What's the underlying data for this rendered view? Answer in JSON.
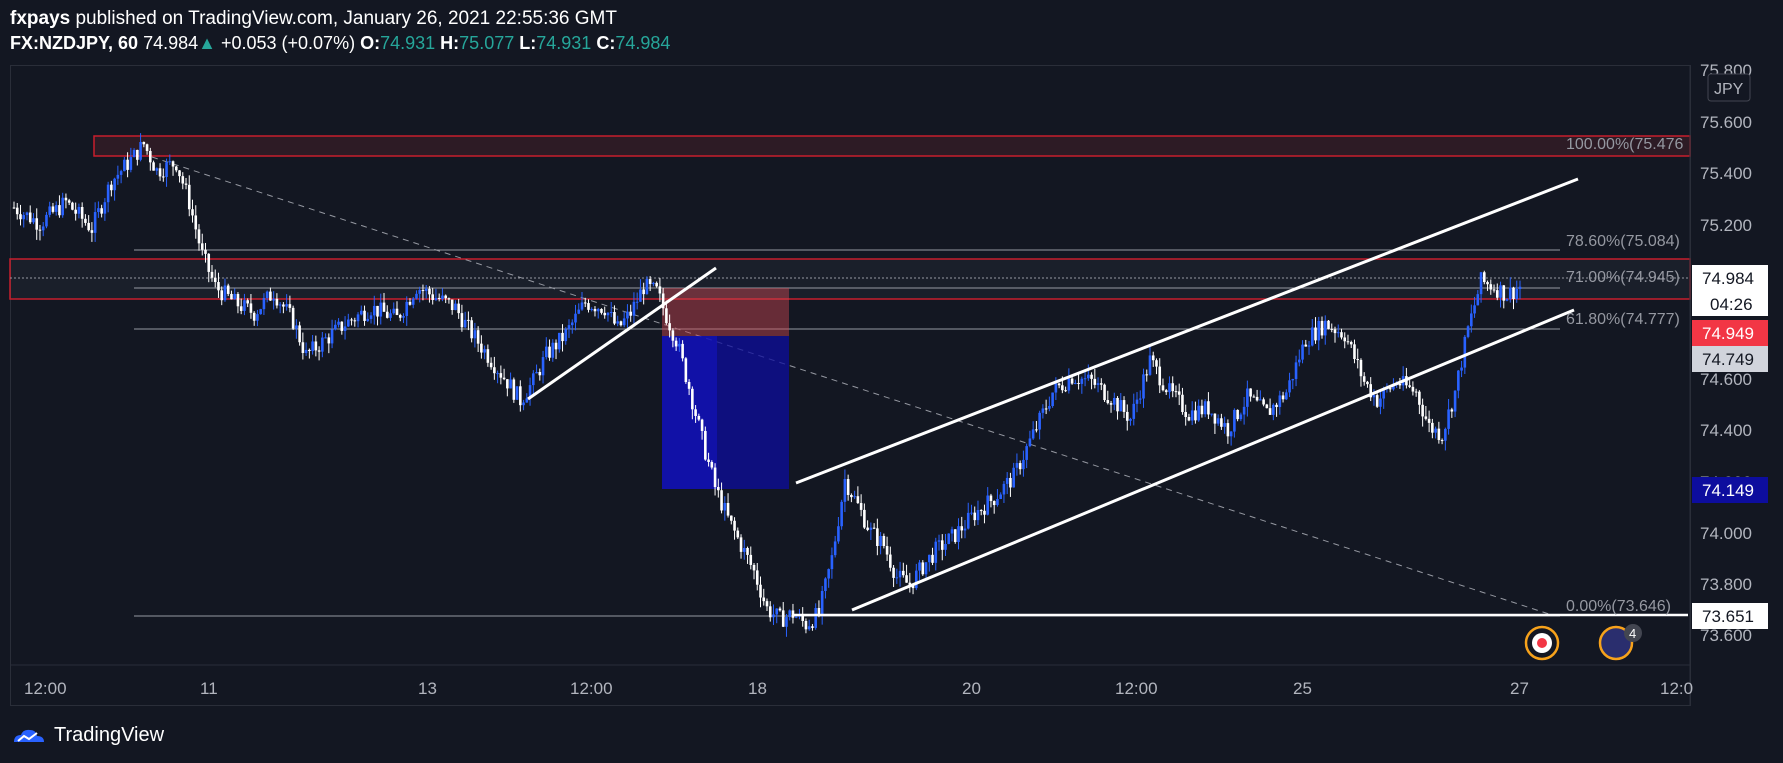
{
  "header": {
    "author": "fxpays",
    "published_text": "published on TradingView.com, January 26, 2021 22:55:36 GMT",
    "symbol": "FX:NZDJPY, 60",
    "last": "74.984",
    "change": "+0.053 (+0.07%)",
    "open_label": "O:",
    "open": "74.931",
    "high_label": "H:",
    "high": "75.077",
    "low_label": "L:",
    "low": "74.931",
    "close_label": "C:",
    "close": "74.984"
  },
  "price_axis": {
    "currency": "JPY",
    "ticks": [
      "75.800",
      "75.600",
      "75.400",
      "75.200",
      "74.600",
      "74.400",
      "74.200",
      "74.000",
      "73.800",
      "73.600"
    ]
  },
  "time_axis": {
    "ticks": [
      "12:00",
      "11",
      "13",
      "12:00",
      "18",
      "20",
      "12:00",
      "25",
      "27",
      "12:0"
    ]
  },
  "price_labels": {
    "last_price": "74.984",
    "countdown": "04:26",
    "red_label": "74.949",
    "gray_label": "74.749",
    "blue_label": "74.149",
    "bottom_label": "73.651"
  },
  "fib_levels": [
    {
      "label": "100.00%(75.476",
      "price": 75.476
    },
    {
      "label": "78.60%(75.084)",
      "price": 75.084
    },
    {
      "label": "71.00%(74.945)",
      "price": 74.945
    },
    {
      "label": "61.80%(74.777)",
      "price": 74.777
    },
    {
      "label": "0.00%(73.646)",
      "price": 73.646
    }
  ],
  "events_badge": "4",
  "footer": {
    "brand": "TradingView"
  },
  "colors": {
    "background": "#131722",
    "bull_candle": "#2962ff",
    "bear_candle": "#ffffff",
    "accent_red": "#f23645",
    "accent_blue": "#0d0d9e",
    "green": "#26a69a"
  },
  "chart_data": {
    "type": "candlestick",
    "symbol": "FX:NZDJPY",
    "interval": "60",
    "ylim": [
      73.55,
      75.82
    ],
    "x_ticks": [
      "12:00",
      "11",
      "13",
      "12:00",
      "18",
      "20",
      "12:00",
      "25",
      "27",
      "12:0"
    ],
    "close_path": [
      [
        0,
        75.28
      ],
      [
        8,
        75.22
      ],
      [
        16,
        75.3
      ],
      [
        24,
        75.2
      ],
      [
        30,
        75.38
      ],
      [
        36,
        75.46
      ],
      [
        40,
        75.52
      ],
      [
        44,
        75.42
      ],
      [
        50,
        75.45
      ],
      [
        54,
        75.3
      ],
      [
        58,
        75.1
      ],
      [
        62,
        74.98
      ],
      [
        68,
        74.92
      ],
      [
        74,
        74.88
      ],
      [
        80,
        74.96
      ],
      [
        86,
        74.85
      ],
      [
        90,
        74.72
      ],
      [
        96,
        74.78
      ],
      [
        102,
        74.84
      ],
      [
        110,
        74.9
      ],
      [
        118,
        74.86
      ],
      [
        124,
        74.98
      ],
      [
        130,
        74.94
      ],
      [
        136,
        74.9
      ],
      [
        140,
        74.82
      ],
      [
        146,
        74.72
      ],
      [
        152,
        74.62
      ],
      [
        156,
        74.55
      ],
      [
        160,
        74.62
      ],
      [
        164,
        74.72
      ],
      [
        170,
        74.8
      ],
      [
        176,
        74.92
      ],
      [
        182,
        74.9
      ],
      [
        186,
        74.82
      ],
      [
        190,
        74.88
      ],
      [
        194,
        74.98
      ],
      [
        198,
        74.96
      ],
      [
        200,
        74.9
      ],
      [
        204,
        74.78
      ],
      [
        208,
        74.6
      ],
      [
        212,
        74.4
      ],
      [
        216,
        74.22
      ],
      [
        220,
        74.1
      ],
      [
        224,
        74.0
      ],
      [
        228,
        73.9
      ],
      [
        232,
        73.76
      ],
      [
        236,
        73.72
      ],
      [
        240,
        73.74
      ],
      [
        244,
        73.7
      ],
      [
        248,
        73.74
      ],
      [
        252,
        73.95
      ],
      [
        256,
        74.25
      ],
      [
        260,
        74.15
      ],
      [
        264,
        74.05
      ],
      [
        268,
        74.0
      ],
      [
        272,
        73.88
      ],
      [
        276,
        73.85
      ],
      [
        280,
        73.92
      ],
      [
        284,
        73.98
      ],
      [
        290,
        74.04
      ],
      [
        296,
        74.12
      ],
      [
        302,
        74.18
      ],
      [
        308,
        74.26
      ],
      [
        314,
        74.42
      ],
      [
        320,
        74.58
      ],
      [
        326,
        74.64
      ],
      [
        332,
        74.62
      ],
      [
        338,
        74.56
      ],
      [
        344,
        74.48
      ],
      [
        350,
        74.7
      ],
      [
        356,
        74.58
      ],
      [
        362,
        74.5
      ],
      [
        368,
        74.52
      ],
      [
        374,
        74.44
      ],
      [
        380,
        74.56
      ],
      [
        386,
        74.5
      ],
      [
        392,
        74.58
      ],
      [
        398,
        74.78
      ],
      [
        404,
        74.84
      ],
      [
        410,
        74.8
      ],
      [
        416,
        74.62
      ],
      [
        420,
        74.55
      ],
      [
        426,
        74.62
      ],
      [
        432,
        74.58
      ],
      [
        436,
        74.45
      ],
      [
        440,
        74.42
      ],
      [
        444,
        74.58
      ],
      [
        448,
        74.82
      ],
      [
        452,
        75.0
      ],
      [
        456,
        74.98
      ],
      [
        460,
        74.95
      ],
      [
        464,
        74.98
      ]
    ]
  }
}
